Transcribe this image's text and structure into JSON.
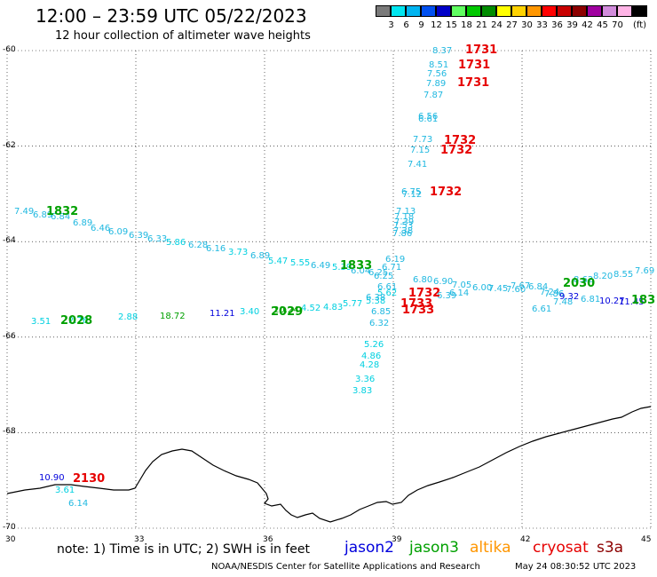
{
  "title": "12:00 – 23:59 UTC 05/22/2023",
  "subtitle": "12 hour collection of altimeter wave heights",
  "color_scale": {
    "unit": "(ft)",
    "bins": [
      {
        "label": "",
        "color": "#7a7a7a"
      },
      {
        "label": "3",
        "color": "#00e6f0"
      },
      {
        "label": "6",
        "color": "#00b4f0"
      },
      {
        "label": "9",
        "color": "#0050f0"
      },
      {
        "label": "12",
        "color": "#0000c8"
      },
      {
        "label": "15",
        "color": "#60ff60"
      },
      {
        "label": "18",
        "color": "#00c800"
      },
      {
        "label": "21",
        "color": "#008c00"
      },
      {
        "label": "24",
        "color": "#ffff00"
      },
      {
        "label": "27",
        "color": "#ffd200"
      },
      {
        "label": "30",
        "color": "#ff9600"
      },
      {
        "label": "33",
        "color": "#ff0000"
      },
      {
        "label": "36",
        "color": "#c80000"
      },
      {
        "label": "39",
        "color": "#8c0000"
      },
      {
        "label": "42",
        "color": "#a000a0"
      },
      {
        "label": "45",
        "color": "#d28cdc"
      },
      {
        "label": "70",
        "color": "#ffb4e6"
      },
      {
        "label": "",
        "color": "#000000"
      }
    ]
  },
  "map": {
    "lat_range": [
      -70,
      -60
    ],
    "lon_range": [
      30,
      45
    ],
    "lat_ticks": [
      "-60",
      "-62",
      "-64",
      "-66",
      "-68",
      "-70"
    ],
    "lon_ticks": [
      "30",
      "33",
      "36",
      "39",
      "42",
      "45"
    ],
    "gridlines": "dotted"
  },
  "passes": [
    {
      "satellite": "cryosat",
      "color": "#e60000",
      "time_labels": [
        "1731",
        "1731",
        "1731",
        "1732",
        "1732",
        "1732"
      ],
      "wave_heights": [
        "8.37",
        "8.51",
        "7.56",
        "7.89",
        "7.87",
        "6.56",
        "6.61",
        "7.73",
        "7.15",
        "7.41",
        "6.75",
        "7.12",
        "7.13",
        "7.18",
        "7.39",
        "7.53",
        "7.38",
        "7.86"
      ]
    },
    {
      "satellite": "jason3",
      "color": "#00a000",
      "time_labels": [
        "1832",
        "1833"
      ],
      "wave_heights": [
        "7.49",
        "6.89",
        "6.84",
        "6.89",
        "6.46",
        "6.09",
        "6.39",
        "6.33",
        "5.86",
        "6.28",
        "6.16",
        "3.73",
        "6.89",
        "5.47",
        "5.55",
        "6.49",
        "5.39",
        "6.04",
        "6.25",
        "6.19",
        "6.25",
        "6.71",
        "6.61",
        "5.62",
        "5.38",
        "6.32",
        "5.26",
        "4.86",
        "4.28",
        "3.36",
        "3.83"
      ]
    },
    {
      "satellite": "cryosat",
      "color": "#e60000",
      "time_labels": [
        "1732",
        "1733",
        "1733"
      ],
      "wave_heights": [
        "6.80",
        "6.90",
        "7.05",
        "6.14",
        "6.39",
        "6.00",
        "7.45",
        "7.60",
        "7.67",
        "6.84",
        "7.24",
        "7.86",
        "6.61",
        "7.48",
        "8.62",
        "8.20",
        "8.55",
        "7.69"
      ]
    },
    {
      "satellite": "jason3",
      "color": "#00a000",
      "time_labels": [
        "2030",
        "183"
      ],
      "wave_heights": [
        "9.32",
        "6.81",
        "10.27",
        "11.45"
      ]
    },
    {
      "satellite": "jason3",
      "color": "#00a000",
      "time_labels": [
        "2028",
        "2029"
      ],
      "wave_heights": [
        "3.51",
        "2.76",
        "2.88",
        "18.72",
        "11.21",
        "3.40",
        "20.24",
        "4.52",
        "4.83",
        "5.77",
        "6.38",
        "6.85"
      ]
    },
    {
      "satellite": "cryosat",
      "color": "#e60000",
      "time_labels": [
        "2130"
      ],
      "wave_heights": [
        "10.90",
        "3.61",
        "6.14"
      ]
    }
  ],
  "note": "note:  1) Time is in UTC;  2) SWH is in feet",
  "satellites": [
    {
      "name": "jason2",
      "color": "#0000dc"
    },
    {
      "name": "jason3",
      "color": "#00a000"
    },
    {
      "name": "altika",
      "color": "#ff9600"
    },
    {
      "name": "cryosat",
      "color": "#e60000"
    },
    {
      "name": "s3a",
      "color": "#8c0000"
    }
  ],
  "credit": "NOAA/NESDIS Center for Satellite Applications and Research",
  "timestamp": "May 24 08:30:52 UTC 2023"
}
